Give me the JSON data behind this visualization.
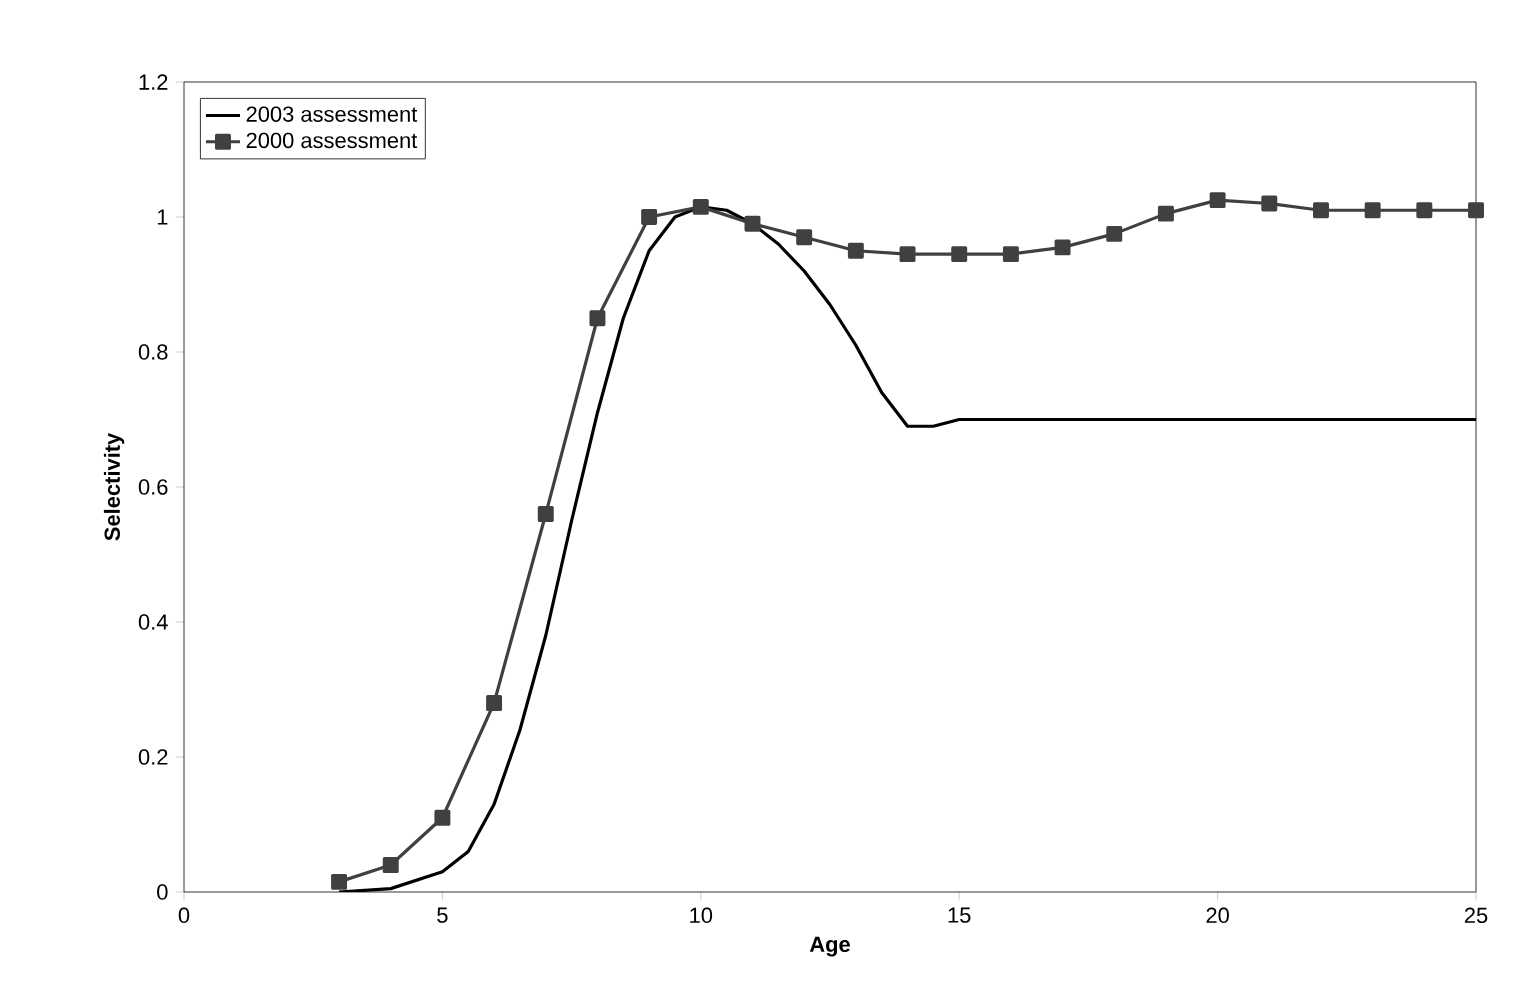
{
  "chart_data": {
    "type": "line",
    "xlabel": "Age",
    "ylabel": "Selectivity",
    "xlim": [
      0,
      25
    ],
    "xticks": [
      0,
      5,
      10,
      15,
      20,
      25
    ],
    "ylim": [
      0,
      1.2
    ],
    "yticks": [
      0,
      0.2,
      0.4,
      0.6,
      0.8,
      1,
      1.2
    ],
    "grid": false,
    "legend": "top left",
    "line_style": "solid",
    "series": [
      {
        "name": "2003 assessment",
        "color": "#000000",
        "marker": "none",
        "x": [
          3,
          4,
          5,
          5.5,
          6,
          6.5,
          7,
          7.5,
          8,
          8.5,
          9,
          9.5,
          10,
          10.5,
          11,
          11.5,
          12,
          12.5,
          13,
          13.5,
          14,
          14.5,
          15,
          20,
          25
        ],
        "values": [
          0.0,
          0.005,
          0.03,
          0.06,
          0.13,
          0.24,
          0.38,
          0.55,
          0.71,
          0.85,
          0.95,
          1.0,
          1.015,
          1.01,
          0.99,
          0.96,
          0.92,
          0.87,
          0.81,
          0.74,
          0.69,
          0.69,
          0.7,
          0.7,
          0.7
        ]
      },
      {
        "name": "2000 assessment",
        "color": "#404040",
        "marker": "square",
        "x": [
          3,
          4,
          5,
          6,
          7,
          8,
          9,
          10,
          11,
          12,
          13,
          14,
          15,
          16,
          17,
          18,
          19,
          20,
          21,
          22,
          23,
          24,
          25
        ],
        "values": [
          0.015,
          0.04,
          0.11,
          0.28,
          0.56,
          0.85,
          1.0,
          1.015,
          0.99,
          0.97,
          0.95,
          0.945,
          0.945,
          0.945,
          0.955,
          0.975,
          1.005,
          1.025,
          1.02,
          1.01,
          1.01,
          1.01,
          1.01
        ]
      }
    ]
  }
}
